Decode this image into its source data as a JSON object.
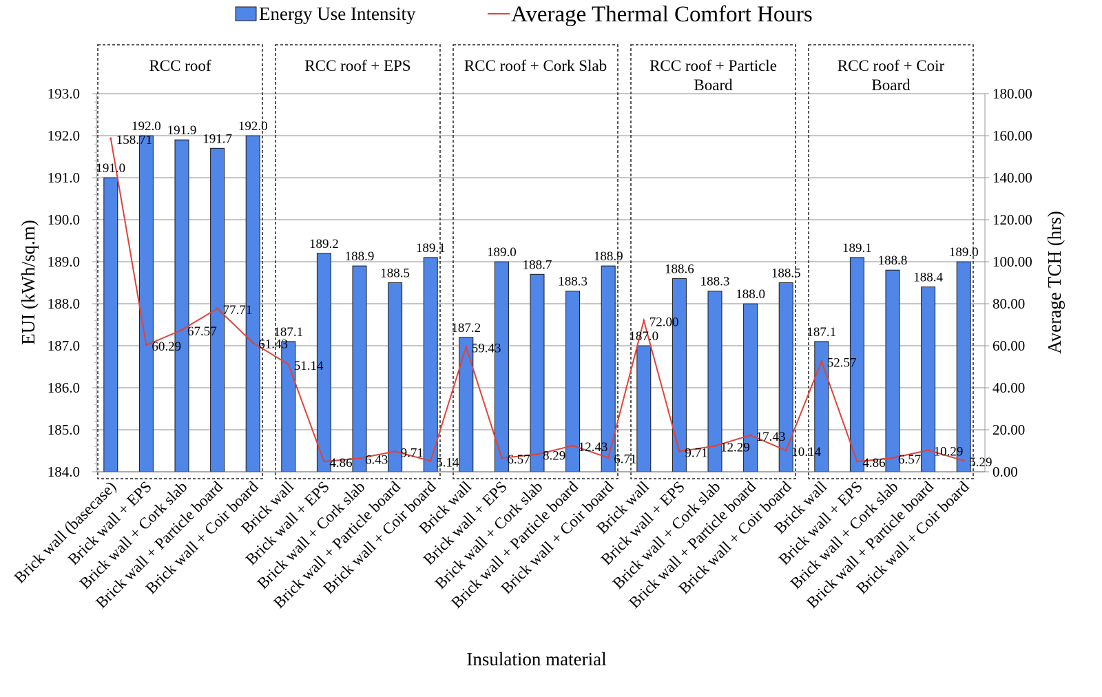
{
  "colors": {
    "bar": "#4f86e8",
    "bar_edge": "#1a1a1a",
    "line": "#e0433a",
    "grid": "#8c8c8c",
    "group_box": "#222222"
  },
  "chart_data": {
    "type": "bar",
    "xlabel": "Insulation material",
    "ylabel": "EUI (kWh/sq.m)",
    "y2label": "Average TCH (hrs)",
    "ylim": [
      184.0,
      193.0
    ],
    "y2lim": [
      0.0,
      180.0
    ],
    "yticks": [
      "184.0",
      "185.0",
      "186.0",
      "187.0",
      "188.0",
      "189.0",
      "190.0",
      "191.0",
      "192.0",
      "193.0"
    ],
    "y2ticks": [
      "0.00",
      "20.00",
      "40.00",
      "60.00",
      "80.00",
      "100.00",
      "120.00",
      "140.00",
      "160.00",
      "180.00"
    ],
    "grid": true,
    "legend_position": "top-center",
    "groups": [
      {
        "label": "RCC roof"
      },
      {
        "label": "RCC roof + EPS"
      },
      {
        "label": "RCC roof + Cork Slab"
      },
      {
        "label": "RCC roof + Particle Board"
      },
      {
        "label": "RCC roof + Coir Board"
      }
    ],
    "categories": [
      "Brick wall (basecase)",
      "Brick wall + EPS",
      "Brick wall + Cork slab",
      "Brick wall + Particle board",
      "Brick wall + Coir board",
      "Brick wall",
      "Brick wall + EPS",
      "Brick wall + Cork slab",
      "Brick wall + Particle board",
      "Brick wall + Coir board",
      "Brick wall",
      "Brick wall + EPS",
      "Brick wall + Cork slab",
      "Brick wall + Particle board",
      "Brick wall + Coir board",
      "Brick wall",
      "Brick wall + EPS",
      "Brick wall + Cork slab",
      "Brick wall + Particle board",
      "Brick wall + Coir board",
      "Brick wall",
      "Brick wall + EPS",
      "Brick wall + Cork slab",
      "Brick wall + Particle board",
      "Brick wall + Coir board"
    ],
    "series": [
      {
        "name": "Energy Use Intensity",
        "type": "bar",
        "axis": "left",
        "values": [
          191.0,
          192.0,
          191.9,
          191.7,
          192.0,
          187.1,
          189.2,
          188.9,
          188.5,
          189.1,
          187.2,
          189.0,
          188.7,
          188.3,
          188.9,
          187.0,
          188.6,
          188.3,
          188.0,
          188.5,
          187.1,
          189.1,
          188.8,
          188.4,
          189.0
        ],
        "labels": [
          "191.0",
          "192.0",
          "191.9",
          "191.7",
          "192.0",
          "187.1",
          "189.2",
          "188.9",
          "188.5",
          "189.1",
          "187.2",
          "189.0",
          "188.7",
          "188.3",
          "188.9",
          "187.0",
          "188.6",
          "188.3",
          "188.0",
          "188.5",
          "187.1",
          "189.1",
          "188.8",
          "188.4",
          "189.0"
        ]
      },
      {
        "name": "Average Thermal Comfort Hours",
        "type": "line",
        "axis": "right",
        "values": [
          158.71,
          60.29,
          67.57,
          77.71,
          61.43,
          51.14,
          4.86,
          6.43,
          9.71,
          5.14,
          59.43,
          6.57,
          8.29,
          12.43,
          6.71,
          72.0,
          9.71,
          12.29,
          17.43,
          10.14,
          52.57,
          4.86,
          6.57,
          10.29,
          5.29
        ],
        "labels": [
          "158.71",
          "60.29",
          "67.57",
          "77.71",
          "61.43",
          "51.14",
          "4.86",
          "6.43",
          "9.71",
          "5.14",
          "59.43",
          "6.57",
          "8.29",
          "12.43",
          "6.71",
          "72.00",
          "9.71",
          "12.29",
          "17.43",
          "10.14",
          "52.57",
          "4.86",
          "6.57",
          "10.29",
          "5.29"
        ]
      }
    ]
  }
}
